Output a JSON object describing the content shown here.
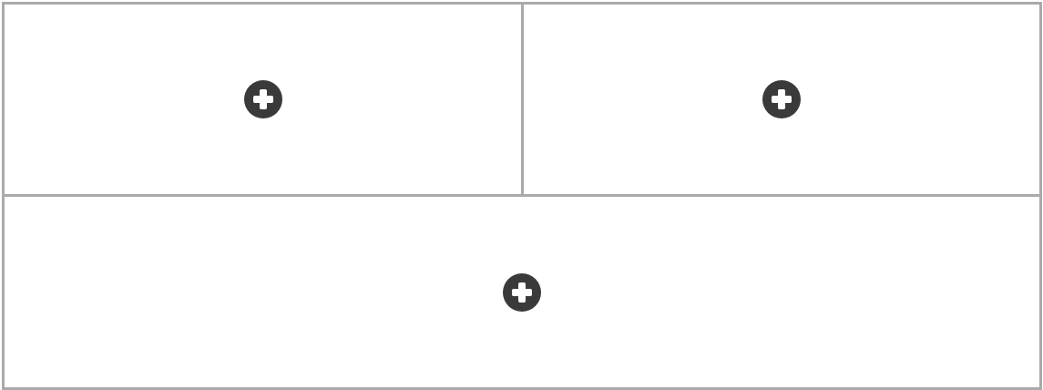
{
  "layout": {
    "slots": [
      {
        "id": "top-left",
        "icon": "plus-circle-icon"
      },
      {
        "id": "top-right",
        "icon": "plus-circle-icon"
      },
      {
        "id": "bottom",
        "icon": "plus-circle-icon"
      }
    ]
  },
  "colors": {
    "border": "#aaaaaa",
    "icon_fill": "#3a3a3a",
    "icon_glyph": "#ffffff",
    "background": "#ffffff"
  }
}
